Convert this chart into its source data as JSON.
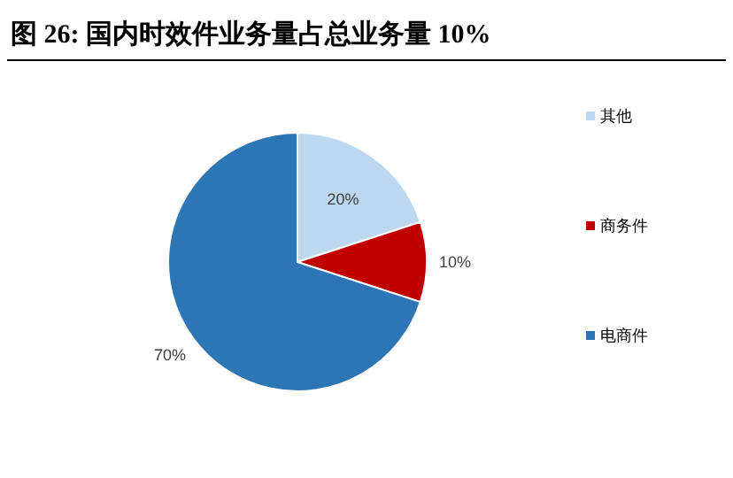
{
  "chart_data": {
    "type": "pie",
    "title": "图 26: 国内时效件业务量占总业务量 10%",
    "categories": [
      "其他",
      "商务件",
      "电商件"
    ],
    "values": [
      20,
      10,
      70
    ],
    "colors": [
      "#bdd7ee",
      "#c00000",
      "#2e75b6"
    ],
    "value_labels": [
      "20%",
      "10%",
      "70%"
    ],
    "legend": "right"
  }
}
